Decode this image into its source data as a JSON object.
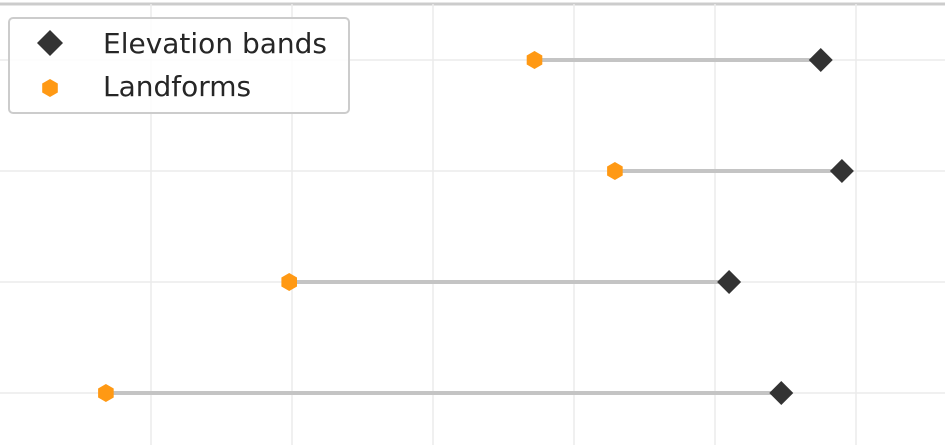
{
  "chart_data": {
    "type": "dumbbell",
    "grid": true,
    "legend_position": "top-left",
    "categories_count": 4,
    "series": [
      {
        "name": "Elevation bands",
        "marker": "diamond",
        "color": "#333333",
        "values": [
          5.75,
          5.9,
          5.1,
          5.47
        ]
      },
      {
        "name": "Landforms",
        "marker": "hexagon",
        "color": "#ff9914",
        "values": [
          3.72,
          4.29,
          1.98,
          0.68
        ]
      }
    ],
    "connector_color": "#c4c4c4",
    "xlim": [
      0.0,
      6.6
    ]
  }
}
